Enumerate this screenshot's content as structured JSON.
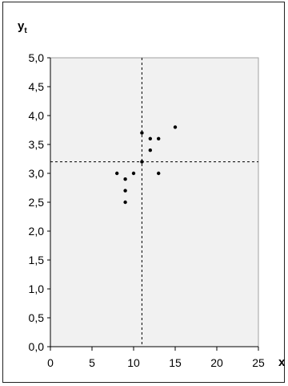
{
  "chart_data": {
    "type": "scatter",
    "title": "",
    "xlabel": "x",
    "ylabel": "y",
    "ylabel_subscript": "t",
    "xlim": [
      0,
      25
    ],
    "ylim": [
      0,
      5
    ],
    "x_ticks": [
      "0",
      "5",
      "10",
      "15",
      "20",
      "25"
    ],
    "y_ticks": [
      "0,0",
      "0,5",
      "1,0",
      "1,5",
      "2,0",
      "2,5",
      "3,0",
      "3,5",
      "4,0",
      "4,5",
      "5,0"
    ],
    "grid": false,
    "reference_lines": {
      "x_mean": 11,
      "y_mean": 3.2
    },
    "points": [
      {
        "x": 8,
        "y": 3.0
      },
      {
        "x": 9,
        "y": 2.9
      },
      {
        "x": 9,
        "y": 2.7
      },
      {
        "x": 9,
        "y": 2.5
      },
      {
        "x": 10,
        "y": 3.0
      },
      {
        "x": 11,
        "y": 3.7
      },
      {
        "x": 11,
        "y": 3.2
      },
      {
        "x": 12,
        "y": 3.6
      },
      {
        "x": 12,
        "y": 3.4
      },
      {
        "x": 13,
        "y": 3.6
      },
      {
        "x": 13,
        "y": 3.0
      },
      {
        "x": 15,
        "y": 3.8
      }
    ],
    "colors": {
      "plot_background": "#f1f1f1",
      "marker": "#000000",
      "frame": "#a0a0a0"
    }
  }
}
